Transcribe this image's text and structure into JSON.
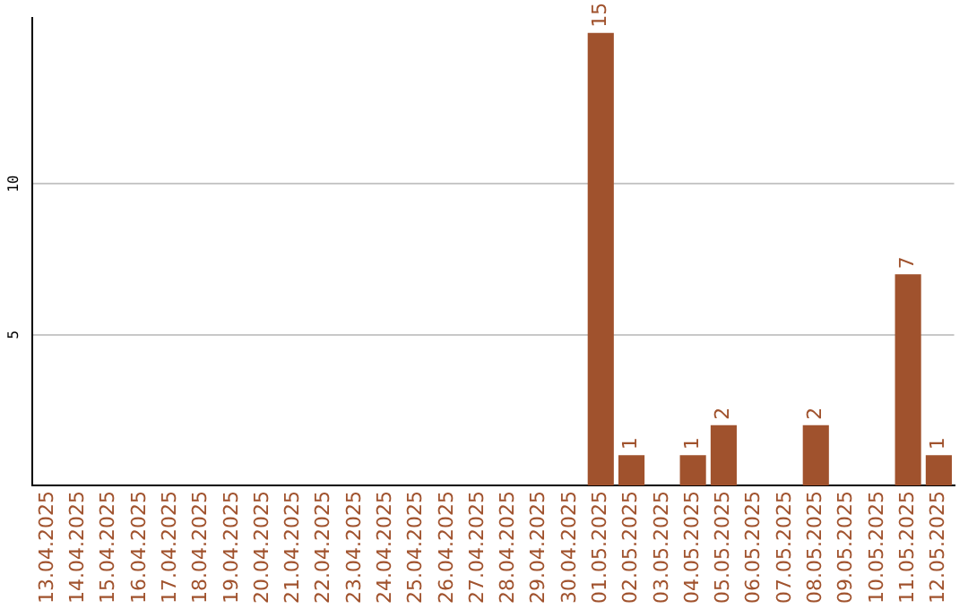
{
  "chart_data": {
    "type": "bar",
    "categories": [
      "13.04.2025",
      "14.04.2025",
      "15.04.2025",
      "16.04.2025",
      "17.04.2025",
      "18.04.2025",
      "19.04.2025",
      "20.04.2025",
      "21.04.2025",
      "22.04.2025",
      "23.04.2025",
      "24.04.2025",
      "25.04.2025",
      "26.04.2025",
      "27.04.2025",
      "28.04.2025",
      "29.04.2025",
      "30.04.2025",
      "01.05.2025",
      "02.05.2025",
      "03.05.2025",
      "04.05.2025",
      "05.05.2025",
      "06.05.2025",
      "07.05.2025",
      "08.05.2025",
      "09.05.2025",
      "10.05.2025",
      "11.05.2025",
      "12.05.2025"
    ],
    "values": [
      0,
      0,
      0,
      0,
      0,
      0,
      0,
      0,
      0,
      0,
      0,
      0,
      0,
      0,
      0,
      0,
      0,
      0,
      15,
      1,
      0,
      1,
      2,
      0,
      0,
      2,
      0,
      0,
      7,
      1
    ],
    "value_labels": [
      null,
      null,
      null,
      null,
      null,
      null,
      null,
      null,
      null,
      null,
      null,
      null,
      null,
      null,
      null,
      null,
      null,
      null,
      "15",
      "1",
      null,
      "1",
      "2",
      null,
      null,
      "2",
      null,
      null,
      "7",
      "1"
    ],
    "color": "#a0522d",
    "ylim": [
      0,
      15.5
    ],
    "yticks": [
      5,
      10
    ],
    "grid": "y",
    "legend": false
  }
}
